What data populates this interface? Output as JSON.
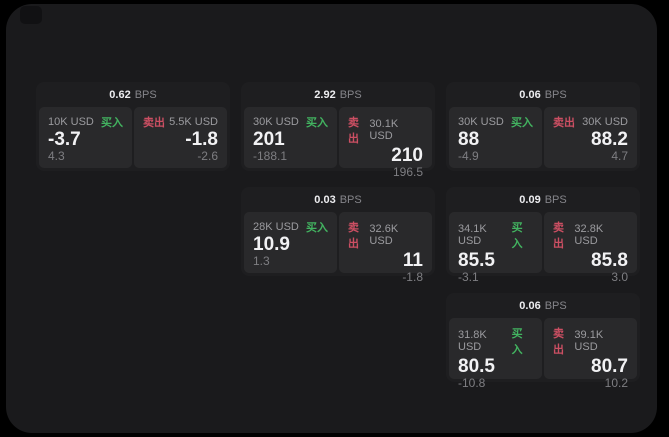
{
  "colors": {
    "surface": "#1a1a1c",
    "card": "#1e1e20",
    "tile": "#29292b",
    "buy": "#42b360",
    "sell": "#cc4f63"
  },
  "labels": {
    "bps": "BPS",
    "buy": "买入",
    "sell": "卖出"
  },
  "cards": [
    {
      "bps": "0.62",
      "buy_size": "10K USD",
      "buy_price": "-3.7",
      "buy_delta": "4.3",
      "sell_size": "5.5K USD",
      "sell_price": "-1.8",
      "sell_delta": "-2.6"
    },
    {
      "bps": "2.92",
      "buy_size": "30K USD",
      "buy_price": "201",
      "buy_delta": "-188.1",
      "sell_size": "30.1K USD",
      "sell_price": "210",
      "sell_delta": "196.5"
    },
    {
      "bps": "0.06",
      "buy_size": "30K USD",
      "buy_price": "88",
      "buy_delta": "-4.9",
      "sell_size": "30K USD",
      "sell_price": "88.2",
      "sell_delta": "4.7"
    },
    {
      "bps": "0.03",
      "buy_size": "28K USD",
      "buy_price": "10.9",
      "buy_delta": "1.3",
      "sell_size": "32.6K USD",
      "sell_price": "11",
      "sell_delta": "-1.8"
    },
    {
      "bps": "0.09",
      "buy_size": "34.1K USD",
      "buy_price": "85.5",
      "buy_delta": "-3.1",
      "sell_size": "32.8K USD",
      "sell_price": "85.8",
      "sell_delta": "3.0"
    },
    {
      "bps": "0.06",
      "buy_size": "31.8K USD",
      "buy_price": "80.5",
      "buy_delta": "-10.8",
      "sell_size": "39.1K USD",
      "sell_price": "80.7",
      "sell_delta": "10.2"
    }
  ]
}
